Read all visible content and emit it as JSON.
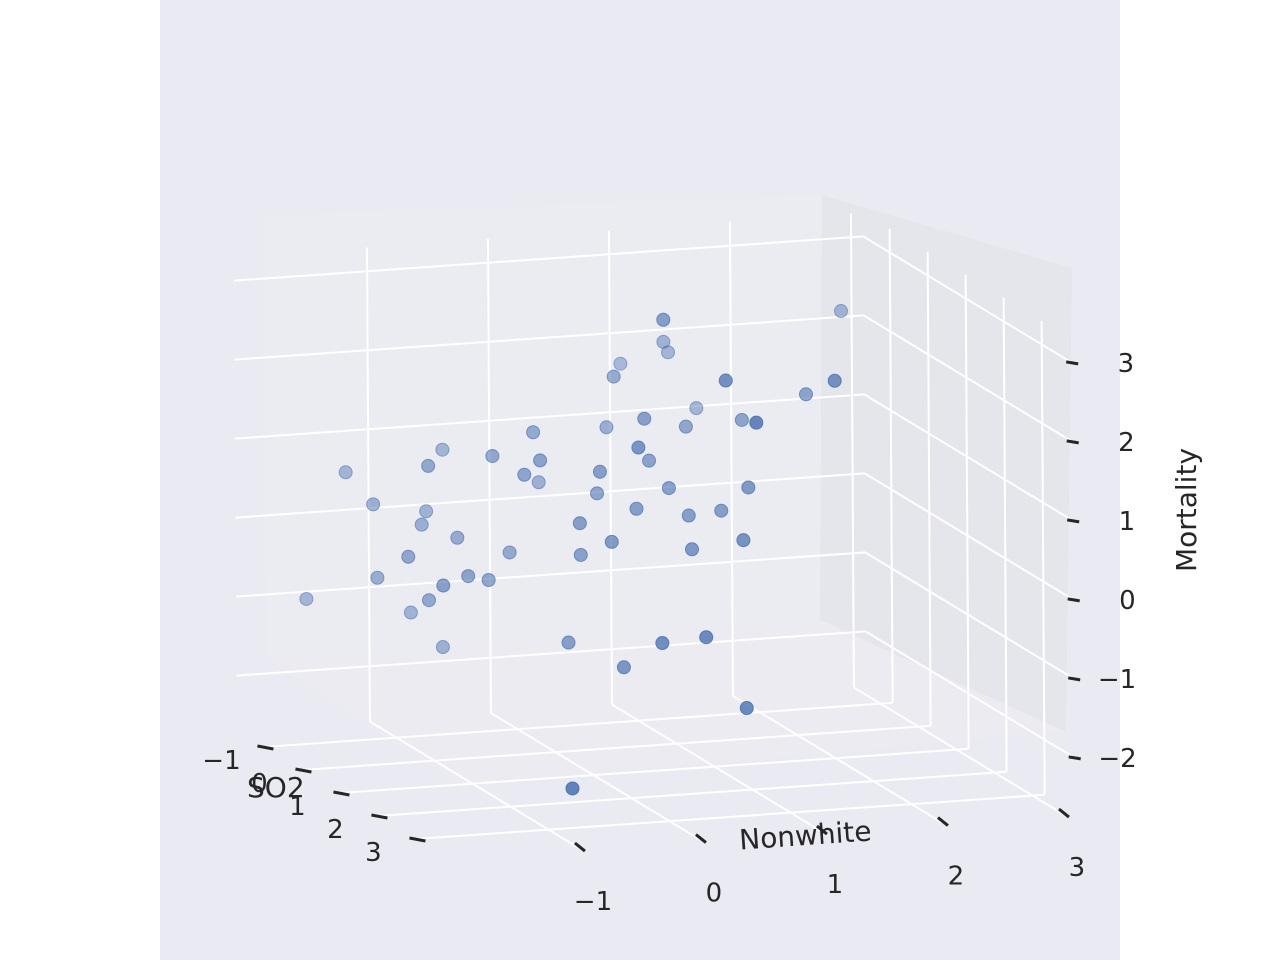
{
  "chart_data": {
    "type": "scatter",
    "projection": "3d",
    "xlabel": "SO2",
    "ylabel": "Nonwhite",
    "zlabel": "Mortality",
    "x_ticks": [
      "−1",
      "0",
      "1",
      "2",
      "3"
    ],
    "y_ticks": [
      "−1",
      "0",
      "1",
      "2",
      "3"
    ],
    "z_ticks": [
      "−2",
      "−1",
      "0",
      "1",
      "2",
      "3"
    ],
    "grid": true,
    "marker_color": "#4c72b0",
    "background_color": "#eaeaf2",
    "points": [
      {
        "so2": 1.0,
        "nonwhite": 0.4,
        "mortality": 3.0
      },
      {
        "so2": 2.0,
        "nonwhite": 0.6,
        "mortality": 2.5
      },
      {
        "so2": 2.0,
        "nonwhite": 1.5,
        "mortality": 2.4
      },
      {
        "so2": 0.0,
        "nonwhite": 0.3,
        "mortality": 2.0
      },
      {
        "so2": 2.8,
        "nonwhite": 0.6,
        "mortality": 2.2
      },
      {
        "so2": 0.8,
        "nonwhite": 0.3,
        "mortality": 1.7
      },
      {
        "so2": 1.6,
        "nonwhite": 0.0,
        "mortality": 1.6
      },
      {
        "so2": 0.1,
        "nonwhite": -0.4,
        "mortality": 1.4
      },
      {
        "so2": 0.3,
        "nonwhite": -0.8,
        "mortality": 1.2
      },
      {
        "so2": 0.2,
        "nonwhite": -1.3,
        "mortality": 1.1
      },
      {
        "so2": 0.5,
        "nonwhite": -0.6,
        "mortality": 1.0
      },
      {
        "so2": 0.6,
        "nonwhite": -0.5,
        "mortality": 1.2
      },
      {
        "so2": 0.9,
        "nonwhite": -0.1,
        "mortality": 1.1
      },
      {
        "so2": -0.4,
        "nonwhite": -0.2,
        "mortality": 0.6
      },
      {
        "so2": 0.5,
        "nonwhite": 0.0,
        "mortality": 0.7
      },
      {
        "so2": 0.9,
        "nonwhite": 0.2,
        "mortality": 0.6
      },
      {
        "so2": 1.8,
        "nonwhite": 0.8,
        "mortality": 0.4
      },
      {
        "so2": -0.7,
        "nonwhite": -1.7,
        "mortality": 0.8
      },
      {
        "so2": -0.3,
        "nonwhite": -1.6,
        "mortality": 0.5
      },
      {
        "so2": 1.0,
        "nonwhite": -0.3,
        "mortality": 0.5
      },
      {
        "so2": 1.2,
        "nonwhite": -0.1,
        "mortality": 0.3
      },
      {
        "so2": 0.7,
        "nonwhite": -0.2,
        "mortality": 0.0
      },
      {
        "so2": 0.1,
        "nonwhite": -0.6,
        "mortality": -0.1
      },
      {
        "so2": -0.7,
        "nonwhite": -0.9,
        "mortality": 1.0
      },
      {
        "so2": -0.5,
        "nonwhite": -1.1,
        "mortality": 0.3
      },
      {
        "so2": -0.3,
        "nonwhite": -1.2,
        "mortality": 0.2
      },
      {
        "so2": 0.0,
        "nonwhite": -1.0,
        "mortality": 0.1
      },
      {
        "so2": 0.5,
        "nonwhite": -0.9,
        "mortality": -0.3
      },
      {
        "so2": 0.6,
        "nonwhite": -1.1,
        "mortality": -0.2
      },
      {
        "so2": 0.3,
        "nonwhite": -1.5,
        "mortality": 0.0
      },
      {
        "so2": 0.9,
        "nonwhite": -1.4,
        "mortality": -0.2
      },
      {
        "so2": 0.2,
        "nonwhite": -1.3,
        "mortality": -0.6
      },
      {
        "so2": -0.2,
        "nonwhite": -1.6,
        "mortality": -0.4
      },
      {
        "so2": -0.8,
        "nonwhite": -2.0,
        "mortality": -0.8
      },
      {
        "so2": -0.6,
        "nonwhite": -1.2,
        "mortality": -1.0
      },
      {
        "so2": 1.0,
        "nonwhite": -0.4,
        "mortality": -1.0
      },
      {
        "so2": 1.5,
        "nonwhite": -0.1,
        "mortality": -1.2
      },
      {
        "so2": -0.4,
        "nonwhite": -1.0,
        "mortality": -1.4
      },
      {
        "so2": 2.4,
        "nonwhite": 0.3,
        "mortality": -0.6
      },
      {
        "so2": 2.2,
        "nonwhite": 0.0,
        "mortality": -0.7
      },
      {
        "so2": 2.5,
        "nonwhite": 0.6,
        "mortality": -1.5
      },
      {
        "so2": 3.0,
        "nonwhite": -1.0,
        "mortality": -2.2
      },
      {
        "so2": 1.4,
        "nonwhite": 0.5,
        "mortality": 0.2
      },
      {
        "so2": 1.0,
        "nonwhite": 0.6,
        "mortality": 0.5
      },
      {
        "so2": 0.8,
        "nonwhite": 0.5,
        "mortality": 0.8
      },
      {
        "so2": 0.9,
        "nonwhite": 0.9,
        "mortality": 0.5
      },
      {
        "so2": 1.3,
        "nonwhite": 1.0,
        "mortality": 0.9
      },
      {
        "so2": 0.6,
        "nonwhite": 0.4,
        "mortality": 1.1
      },
      {
        "so2": -0.2,
        "nonwhite": 0.3,
        "mortality": 1.3
      },
      {
        "so2": 0.3,
        "nonwhite": 0.8,
        "mortality": 1.4
      },
      {
        "so2": 0.5,
        "nonwhite": 1.2,
        "mortality": 1.5
      },
      {
        "so2": 0.6,
        "nonwhite": 1.7,
        "mortality": 1.8
      },
      {
        "so2": -0.7,
        "nonwhite": 1.2,
        "mortality": 1.3
      },
      {
        "so2": -0.8,
        "nonwhite": 1.0,
        "mortality": 2.0
      },
      {
        "so2": -1.1,
        "nonwhite": 0.7,
        "mortality": 1.8
      },
      {
        "so2": -0.6,
        "nonwhite": 0.9,
        "mortality": 2.2
      },
      {
        "so2": -0.7,
        "nonwhite": 2.4,
        "mortality": 2.4
      }
    ]
  }
}
